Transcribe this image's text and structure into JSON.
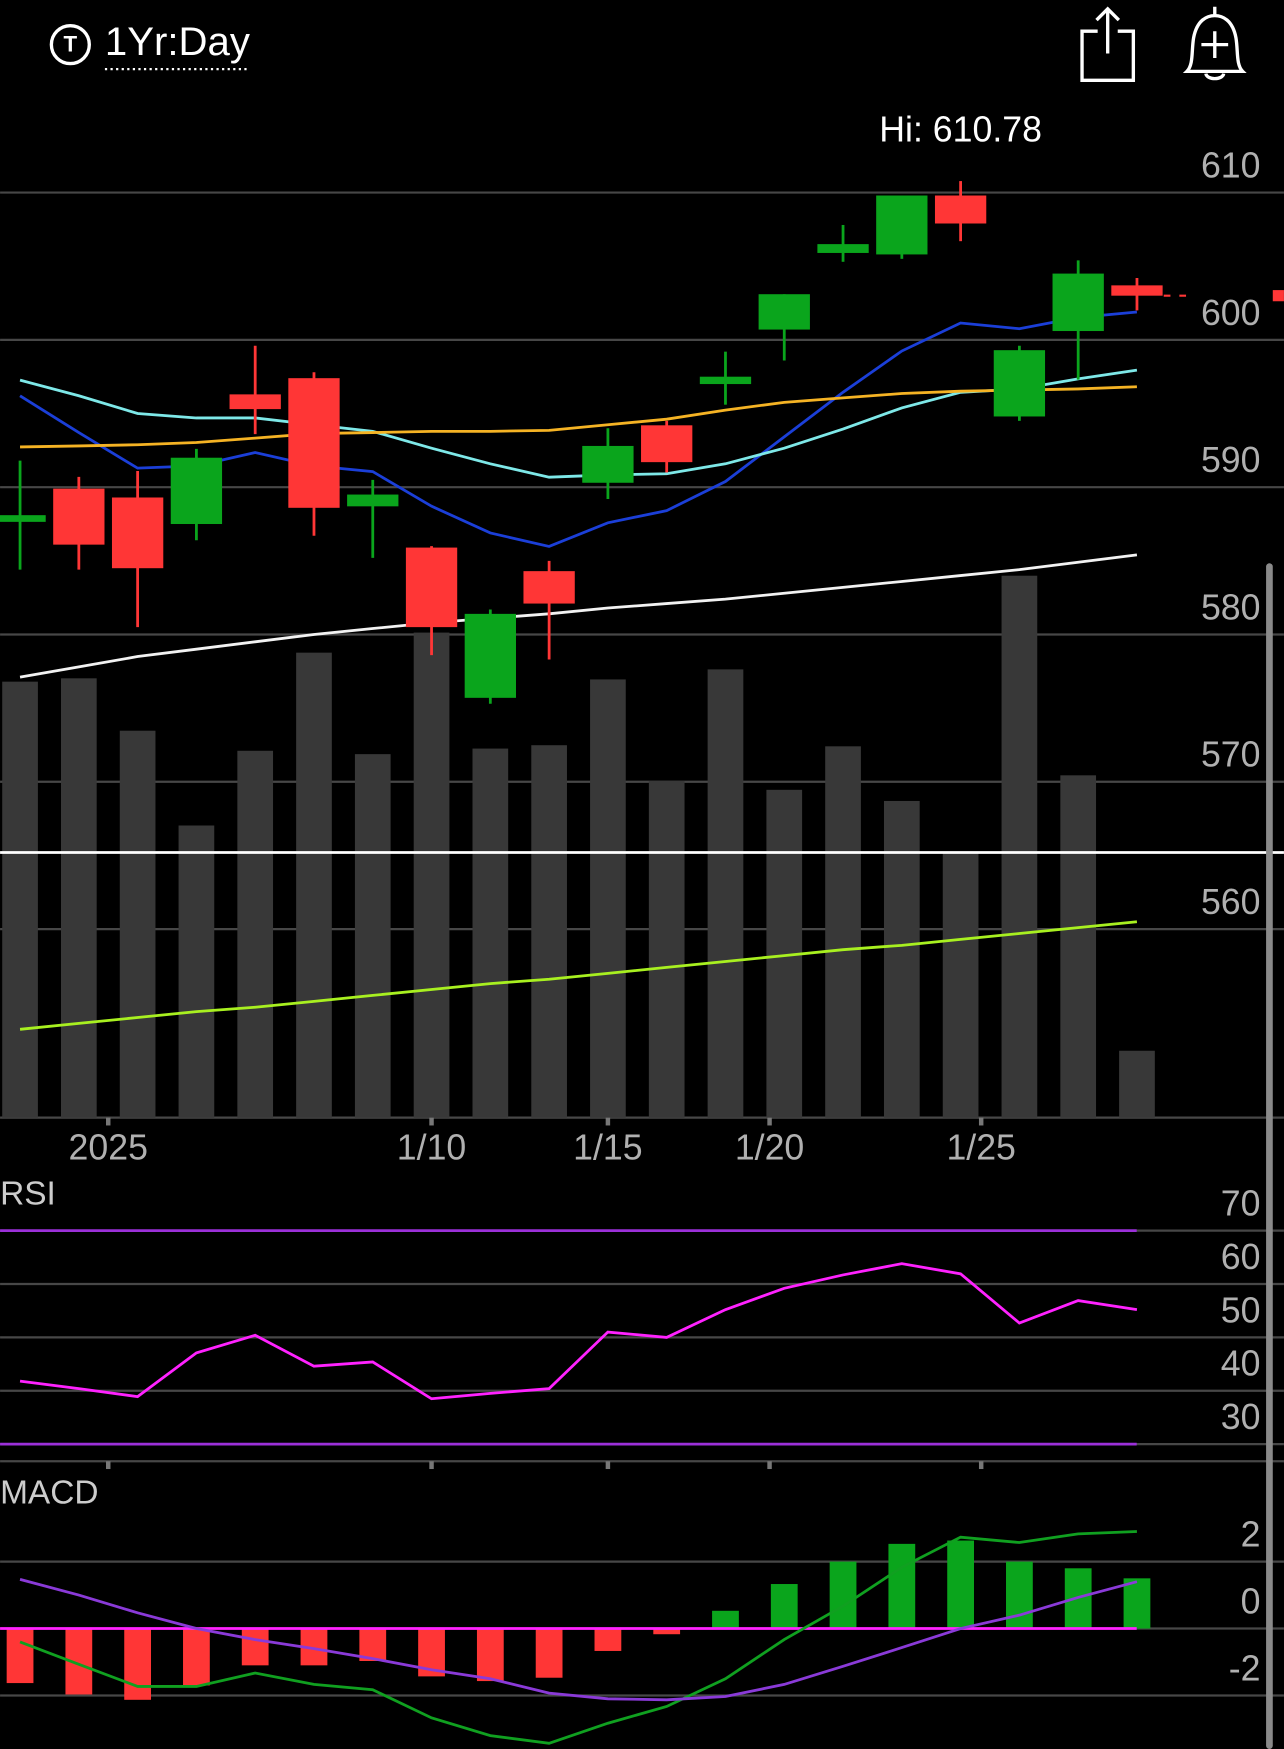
{
  "header": {
    "icon_letter": "T",
    "range": "1Yr:Day"
  },
  "chart_data": [
    {
      "type": "candlestick",
      "annotation": "Hi: 610.78",
      "open": [
        587.9,
        589.9,
        589.3,
        587.5,
        596.3,
        597.4,
        588.7,
        585.9,
        575.7,
        584.3,
        590.3,
        594.2,
        597.0,
        600.7,
        605.9,
        605.8,
        609.8,
        594.8,
        600.6,
        603.7
      ],
      "high": [
        591.8,
        590.7,
        591.1,
        592.6,
        599.6,
        597.8,
        590.5,
        586.0,
        581.7,
        585.0,
        594.0,
        594.5,
        599.2,
        603.1,
        607.8,
        609.8,
        610.78,
        599.6,
        605.4,
        604.2
      ],
      "low": [
        584.4,
        584.4,
        580.5,
        586.4,
        593.6,
        586.7,
        585.2,
        578.6,
        575.3,
        578.3,
        589.2,
        591.0,
        595.6,
        598.6,
        605.3,
        605.5,
        606.7,
        594.5,
        597.3,
        602.0
      ],
      "close": [
        588.1,
        586.1,
        584.5,
        592.0,
        595.3,
        588.6,
        589.5,
        580.5,
        581.4,
        582.1,
        592.8,
        591.7,
        597.5,
        603.1,
        606.5,
        609.8,
        607.9,
        599.3,
        604.5,
        603.0
      ],
      "up_color": "#0aa51c",
      "down_color": "#ff3636",
      "series": [
        {
          "color": "#1b3fd8",
          "values": [
            596.21,
            593.71,
            591.29,
            591.44,
            592.35,
            591.44,
            591.06,
            588.71,
            586.89,
            585.98,
            587.58,
            588.41,
            590.38,
            593.41,
            596.44,
            599.24,
            601.14,
            600.76,
            601.52,
            601.89
          ]
        },
        {
          "color": "#7ee8e8",
          "values": [
            597.27,
            596.21,
            595.0,
            594.7,
            594.7,
            594.24,
            593.79,
            592.65,
            591.59,
            590.68,
            590.83,
            590.91,
            591.59,
            592.65,
            593.94,
            595.38,
            596.44,
            596.67,
            597.35,
            597.95
          ]
        },
        {
          "color": "#f5b324",
          "values": [
            592.73,
            592.8,
            592.88,
            593.03,
            593.33,
            593.64,
            593.71,
            593.79,
            593.79,
            593.86,
            594.24,
            594.62,
            595.23,
            595.76,
            596.06,
            596.36,
            596.52,
            596.59,
            596.67,
            596.82
          ]
        },
        {
          "color": "#f2f2f2",
          "values": [
            577.1,
            577.8,
            578.5,
            579.0,
            579.5,
            580.0,
            580.4,
            580.8,
            581.1,
            581.4,
            581.8,
            582.1,
            582.4,
            582.8,
            583.2,
            583.6,
            584.0,
            584.4,
            584.9,
            585.4
          ]
        },
        {
          "color": "#a8f020",
          "values": [
            553.2,
            553.6,
            554.0,
            554.4,
            554.7,
            555.1,
            555.5,
            555.9,
            556.3,
            556.6,
            557.0,
            557.4,
            557.8,
            558.2,
            558.6,
            558.9,
            559.3,
            559.7,
            560.1,
            560.5
          ]
        }
      ],
      "volume": {
        "color": "#383838",
        "ylim": [
          0,
          60
        ],
        "values": [
          39.1,
          39.4,
          34.7,
          26.2,
          32.9,
          41.7,
          32.6,
          43.5,
          33.1,
          33.4,
          39.3,
          30.2,
          40.2,
          29.4,
          33.3,
          28.4,
          23.7,
          48.6,
          30.7,
          6.0
        ]
      },
      "hline": {
        "value": 565.2,
        "color": "#ffffff"
      },
      "xlim": [
        -0.34,
        21.5
      ],
      "xticks": [
        {
          "value": 1.5,
          "label": "2025"
        },
        {
          "value": 7,
          "label": "1/10"
        },
        {
          "value": 10,
          "label": "1/15"
        },
        {
          "value": 12.75,
          "label": "1/20"
        },
        {
          "value": 16.35,
          "label": "1/25"
        }
      ],
      "ylim": [
        547.2,
        615.5
      ],
      "yticks": [
        560,
        570,
        580,
        590,
        600,
        610
      ],
      "grid": true
    },
    {
      "type": "line",
      "title": "RSI",
      "series": [
        {
          "color": "#ff22ff",
          "values": [
            41.8,
            40.4,
            38.9,
            47.1,
            50.4,
            44.6,
            45.4,
            38.5,
            39.5,
            40.4,
            51.0,
            50.0,
            55.2,
            59.2,
            61.7,
            63.8,
            61.9,
            52.7,
            56.9,
            55.2
          ]
        }
      ],
      "band_lines": [
        70,
        30
      ],
      "band_color": "#9b30d9",
      "xlim": [
        -0.34,
        21.5
      ],
      "ylim": [
        26.8,
        78
      ],
      "yticks": [
        30,
        40,
        50,
        60,
        70
      ],
      "grid": true
    },
    {
      "type": "macd",
      "title": "MACD",
      "histogram": [
        -1.63,
        -1.97,
        -2.13,
        -1.7,
        -1.1,
        -1.1,
        -0.97,
        -1.43,
        -1.57,
        -1.47,
        -0.67,
        -0.17,
        0.53,
        1.33,
        2.0,
        2.53,
        2.63,
        2.0,
        1.8,
        1.5
      ],
      "up_color": "#0aa51c",
      "down_color": "#ff3636",
      "series": [
        {
          "color": "#10a020",
          "values": [
            -0.4,
            -1.07,
            -1.73,
            -1.73,
            -1.33,
            -1.67,
            -1.83,
            -2.67,
            -3.2,
            -3.43,
            -2.83,
            -2.33,
            -1.5,
            -0.33,
            0.67,
            1.83,
            2.73,
            2.57,
            2.83,
            2.9
          ]
        },
        {
          "color": "#8a3ad8",
          "values": [
            1.47,
            1.0,
            0.47,
            0,
            -0.33,
            -0.6,
            -0.9,
            -1.23,
            -1.5,
            -1.93,
            -2.1,
            -2.13,
            -2.03,
            -1.67,
            -1.13,
            -0.57,
            0,
            0.4,
            0.93,
            1.4
          ]
        }
      ],
      "zero_color": "#ff22ff",
      "xlim": [
        -0.34,
        21.5
      ],
      "ylim": [
        -3.6,
        4.5
      ],
      "yticks": [
        -2,
        0,
        2
      ],
      "grid": true
    }
  ]
}
